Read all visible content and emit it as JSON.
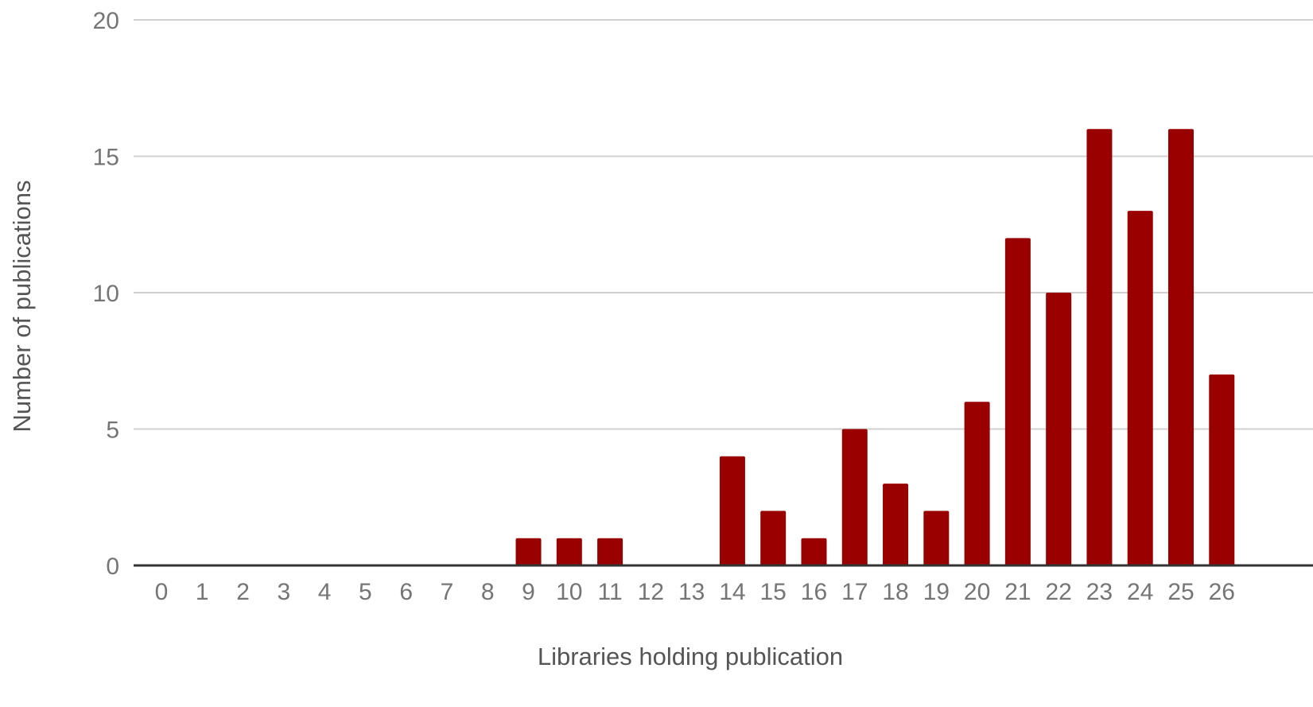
{
  "chart_data": {
    "type": "bar",
    "title": "",
    "xlabel": "Libraries holding publication",
    "ylabel": "Number of publications",
    "categories": [
      "0",
      "1",
      "2",
      "3",
      "4",
      "5",
      "6",
      "7",
      "8",
      "9",
      "10",
      "11",
      "12",
      "13",
      "14",
      "15",
      "16",
      "17",
      "18",
      "19",
      "20",
      "21",
      "22",
      "23",
      "24",
      "25",
      "26"
    ],
    "series": [
      {
        "color": "#990000",
        "values": [
          0,
          0,
          0,
          0,
          0,
          0,
          0,
          0,
          0,
          1,
          1,
          1,
          0,
          0,
          4,
          2,
          1,
          5,
          3,
          2,
          6,
          12,
          10,
          16,
          13,
          16,
          7
        ]
      }
    ],
    "ylim": [
      0,
      20
    ],
    "yticks": [
      "0",
      "5",
      "10",
      "15",
      "20"
    ],
    "grid": true,
    "legend": "none"
  }
}
